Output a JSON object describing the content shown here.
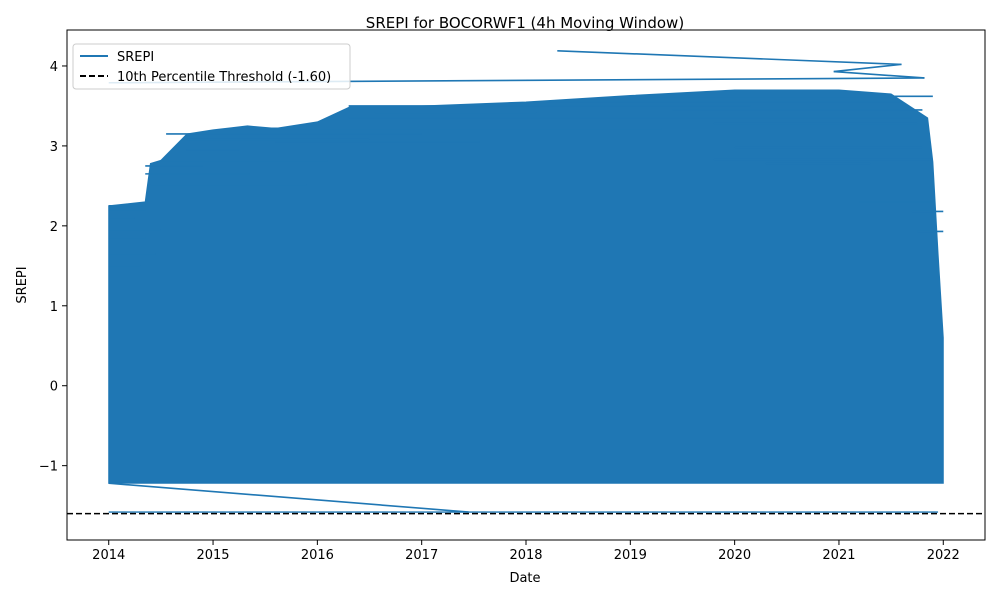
{
  "chart_data": {
    "type": "line",
    "title": "SREPI for BOCORWF1 (4h Moving Window)",
    "xlabel": "Date",
    "ylabel": "SREPI",
    "x_ticks": [
      "2014",
      "2015",
      "2016",
      "2017",
      "2018",
      "2019",
      "2020",
      "2021",
      "2022"
    ],
    "y_ticks": [
      -1,
      0,
      1,
      2,
      3,
      4
    ],
    "y_tick_labels": [
      "−1",
      "0",
      "1",
      "2",
      "3",
      "4"
    ],
    "xlim": [
      2013.6,
      2022.4
    ],
    "ylim": [
      -1.93,
      4.45
    ],
    "grid": false,
    "legend_position": "upper-left",
    "band": {
      "name": "SREPI",
      "color": "#1f77b4",
      "x_start": 2014.0,
      "x_end": 2022.0,
      "y_low": -1.22,
      "y_high_end": [
        [
          2014.0,
          2.25
        ],
        [
          2014.35,
          2.3
        ],
        [
          2014.4,
          2.78
        ],
        [
          2014.5,
          2.82
        ],
        [
          2014.75,
          3.15
        ],
        [
          2015.0,
          3.2
        ],
        [
          2015.33,
          3.25
        ],
        [
          2015.6,
          3.22
        ],
        [
          2016.0,
          3.3
        ],
        [
          2016.33,
          3.5
        ],
        [
          2017.0,
          3.5
        ],
        [
          2018.0,
          3.55
        ],
        [
          2019.0,
          3.63
        ],
        [
          2020.0,
          3.7
        ],
        [
          2021.0,
          3.7
        ],
        [
          2021.5,
          3.65
        ],
        [
          2021.85,
          3.35
        ],
        [
          2021.9,
          2.8
        ],
        [
          2021.95,
          1.65
        ],
        [
          2022.0,
          0.6
        ]
      ],
      "lines": [
        {
          "x": [
            2014.0,
            2014.35
          ],
          "y": 2.25
        },
        {
          "x": [
            2014.0,
            2014.35
          ],
          "y": 2.2
        },
        {
          "x": [
            2014.0,
            2014.25
          ],
          "y": 2.1
        },
        {
          "x": [
            2014.0,
            2014.5
          ],
          "y": 1.95
        },
        {
          "x": [
            2014.0,
            2014.35
          ],
          "y": 1.85
        },
        {
          "x": [
            2014.0,
            2014.45
          ],
          "y": 1.65
        },
        {
          "x": [
            2014.0,
            2014.3
          ],
          "y": 1.5
        },
        {
          "x": [
            2014.35,
            2014.9
          ],
          "y": 2.75
        },
        {
          "x": [
            2014.35,
            2015.35
          ],
          "y": 2.65
        },
        {
          "x": [
            2014.4,
            2015.9
          ],
          "y": 2.52
        },
        {
          "x": [
            2014.5,
            2016.1
          ],
          "y": 2.82
        },
        {
          "x": [
            2014.55,
            2017.0
          ],
          "y": 3.15
        },
        {
          "x": [
            2014.75,
            2016.5
          ],
          "y": 3.08
        },
        {
          "x": [
            2014.75,
            2015.25
          ],
          "y": 2.95
        },
        {
          "x": [
            2015.6,
            2017.55
          ],
          "y": 3.05
        },
        {
          "x": [
            2015.35,
            2019.3
          ],
          "y": 3.22
        },
        {
          "x": [
            2016.3,
            2020.15
          ],
          "y": 3.5
        },
        {
          "x": [
            2016.3,
            2021.7
          ],
          "y": 3.35
        },
        {
          "x": [
            2016.55,
            2018.1
          ],
          "y": 3.42
        },
        {
          "x": [
            2018.2,
            2021.6
          ],
          "y": 3.55
        },
        {
          "x": [
            2019.15,
            2021.9
          ],
          "y": 3.62
        },
        {
          "x": [
            2019.4,
            2021.8
          ],
          "y": 3.45
        },
        {
          "x": [
            2019.8,
            2021.75
          ],
          "y": 3.28
        },
        {
          "x": [
            2020.0,
            2021.8
          ],
          "y": 2.98
        },
        {
          "x": [
            2019.8,
            2021.9
          ],
          "y": 2.83
        },
        {
          "x": [
            2020.3,
            2021.3
          ],
          "y": 2.78
        },
        {
          "x": [
            2021.2,
            2021.9
          ],
          "y": 2.3
        },
        {
          "x": [
            2021.7,
            2022.0
          ],
          "y": 2.18
        },
        {
          "x": [
            2021.75,
            2022.0
          ],
          "y": 1.93
        }
      ],
      "spikes": [
        {
          "x": [
            2014.0,
            2021.82
          ],
          "y": [
            3.79,
            3.85
          ]
        },
        {
          "x": [
            2021.82,
            2020.95
          ],
          "y": [
            3.85,
            3.93
          ]
        },
        {
          "x": [
            2020.95,
            2021.6
          ],
          "y": [
            3.93,
            4.02
          ]
        },
        {
          "x": [
            2021.6,
            2018.3
          ],
          "y": [
            4.02,
            4.19
          ]
        },
        {
          "x": [
            2014.0,
            2017.45
          ],
          "y": [
            -1.22,
            -1.58
          ]
        }
      ],
      "floor": {
        "x": [
          2014.0,
          2021.95
        ],
        "y": -1.58
      }
    },
    "series": [
      {
        "name": "SREPI",
        "color": "#1f77b4",
        "style": "solid"
      }
    ],
    "threshold": {
      "name": "10th Percentile Threshold (-1.60)",
      "value": -1.6,
      "color": "#000000",
      "style": "dashed"
    }
  }
}
